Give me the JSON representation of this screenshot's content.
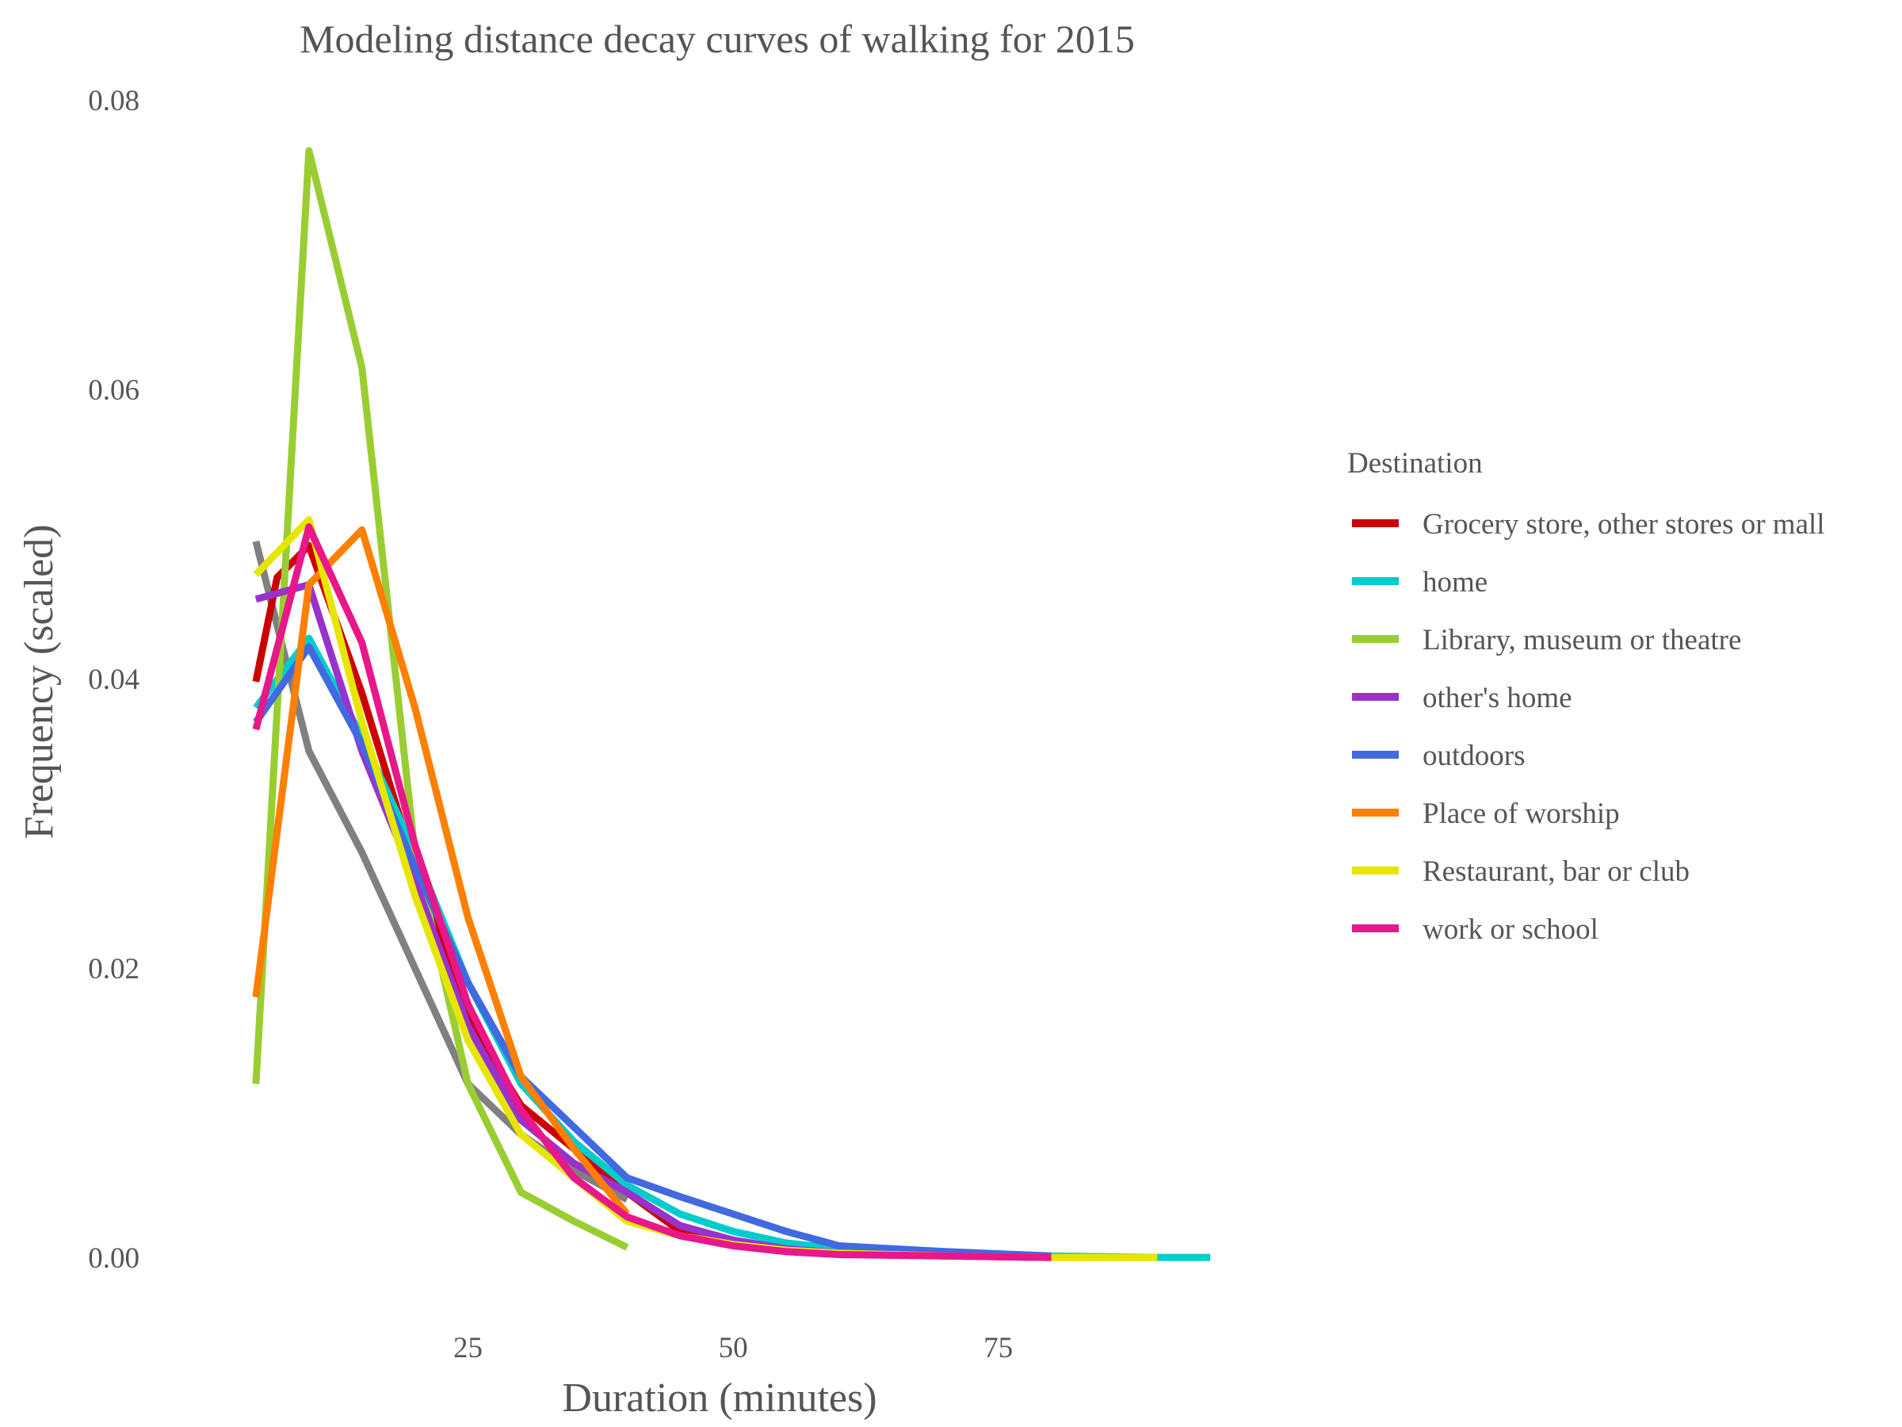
{
  "chart_data": {
    "type": "line",
    "title": "Modeling distance decay curves of walking for 2015",
    "xlabel": "Duration (minutes)",
    "ylabel": "Frequency (scaled)",
    "xlim": [
      0,
      97
    ],
    "ylim": [
      -0.0035,
      0.081
    ],
    "x_ticks": [
      25,
      50,
      75
    ],
    "x_tick_labels": [
      "25",
      "50",
      "75"
    ],
    "y_ticks": [
      0.0,
      0.02,
      0.04,
      0.06,
      0.08
    ],
    "y_tick_labels": [
      "0.00",
      "0.02",
      "0.04",
      "0.06",
      "0.08"
    ],
    "grid": false,
    "legend": {
      "title": "Destination",
      "position": "right"
    },
    "series": [
      {
        "name": "",
        "color": "#808080",
        "x": [
          5,
          10,
          15,
          20,
          25,
          30,
          35,
          40
        ],
        "y": [
          0.0495,
          0.035,
          0.028,
          0.02,
          0.012,
          0.0085,
          0.006,
          0.004
        ]
      },
      {
        "name": "Grocery store, other stores or mall",
        "color": "#CC0000",
        "x": [
          5,
          7,
          10,
          15,
          20,
          25,
          30,
          35,
          40,
          45,
          50,
          55,
          60,
          70,
          80
        ],
        "y": [
          0.0398,
          0.047,
          0.0492,
          0.039,
          0.027,
          0.0165,
          0.0105,
          0.0075,
          0.0045,
          0.0018,
          0.001,
          0.0006,
          0.0003,
          0.0001,
          0.0
        ]
      },
      {
        "name": "home",
        "color": "#00CCCC",
        "x": [
          5,
          10,
          15,
          20,
          25,
          30,
          35,
          40,
          45,
          50,
          55,
          60,
          70,
          80,
          90,
          95
        ],
        "y": [
          0.038,
          0.0428,
          0.036,
          0.028,
          0.019,
          0.012,
          0.008,
          0.005,
          0.003,
          0.0018,
          0.001,
          0.0006,
          0.0002,
          0.0001,
          0.0,
          0.0
        ]
      },
      {
        "name": "Library, museum or theatre",
        "color": "#9ACD32",
        "x": [
          5,
          10,
          15,
          20,
          25,
          30,
          35,
          40
        ],
        "y": [
          0.012,
          0.0765,
          0.0615,
          0.028,
          0.012,
          0.0045,
          0.0025,
          0.0007
        ]
      },
      {
        "name": "other's home",
        "color": "#9932CC",
        "x": [
          5,
          10,
          15,
          20,
          25,
          30,
          35,
          40,
          45,
          50,
          55,
          60,
          70,
          80
        ],
        "y": [
          0.0455,
          0.0465,
          0.035,
          0.026,
          0.016,
          0.0095,
          0.0065,
          0.0045,
          0.0022,
          0.0012,
          0.0006,
          0.0003,
          0.0001,
          0.0
        ]
      },
      {
        "name": "outdoors",
        "color": "#4169E1",
        "x": [
          5,
          10,
          15,
          20,
          25,
          30,
          35,
          40,
          45,
          50,
          55,
          60,
          70,
          80
        ],
        "y": [
          0.037,
          0.0422,
          0.0355,
          0.027,
          0.019,
          0.0125,
          0.009,
          0.0055,
          0.0042,
          0.003,
          0.0018,
          0.0008,
          0.0004,
          0.0001
        ]
      },
      {
        "name": "Place of worship",
        "color": "#FF7F00",
        "x": [
          5,
          10,
          15,
          20,
          25,
          30,
          35,
          40
        ],
        "y": [
          0.018,
          0.0465,
          0.0503,
          0.038,
          0.0235,
          0.0125,
          0.0075,
          0.003
        ]
      },
      {
        "name": "Restaurant, bar or club",
        "color": "#E6E600",
        "x": [
          5,
          10,
          15,
          20,
          25,
          30,
          35,
          40,
          45,
          50,
          55,
          60,
          70,
          80,
          90
        ],
        "y": [
          0.0472,
          0.051,
          0.037,
          0.025,
          0.015,
          0.0085,
          0.0055,
          0.0025,
          0.0015,
          0.0009,
          0.0005,
          0.0003,
          0.0001,
          0.0,
          0.0
        ]
      },
      {
        "name": "work or school",
        "color": "#E8178A",
        "x": [
          5,
          10,
          15,
          20,
          25,
          30,
          35,
          40,
          45,
          50,
          55,
          60,
          70,
          80
        ],
        "y": [
          0.0365,
          0.0505,
          0.0425,
          0.0285,
          0.0175,
          0.0102,
          0.0055,
          0.0028,
          0.0015,
          0.0008,
          0.0004,
          0.0002,
          0.0001,
          0.0
        ]
      }
    ]
  }
}
